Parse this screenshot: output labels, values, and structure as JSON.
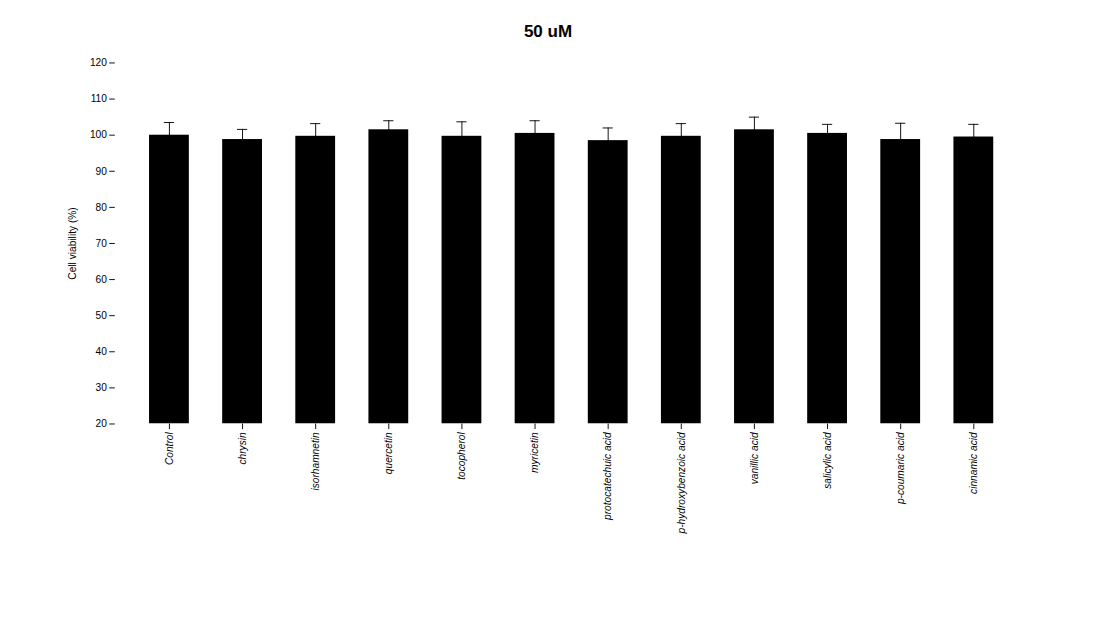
{
  "chart_data": {
    "type": "bar",
    "title": "50 uM",
    "ylabel": "Cell viability (%)",
    "categories": [
      "Control",
      "chrysin",
      "isorhamnetin",
      "quercetin",
      "tocopherol",
      "myricetin",
      "protocatechuic acid",
      "p-hydroxybenzoic acid",
      "vanillic acid",
      "salicylic acid",
      "p-coumaric acid",
      "cinnamic acid"
    ],
    "values": [
      100.0,
      98.8,
      99.7,
      101.5,
      99.7,
      100.5,
      98.5,
      99.7,
      101.5,
      100.5,
      98.8,
      99.5
    ],
    "errors": [
      3.5,
      2.8,
      3.5,
      2.5,
      4.0,
      3.5,
      3.5,
      3.5,
      3.5,
      2.5,
      4.5,
      3.5
    ],
    "color": "#000000",
    "ylim": [
      20,
      120
    ],
    "yticks": [
      20,
      30,
      40,
      50,
      60,
      70,
      80,
      90,
      100,
      110,
      120
    ],
    "grid": false
  }
}
